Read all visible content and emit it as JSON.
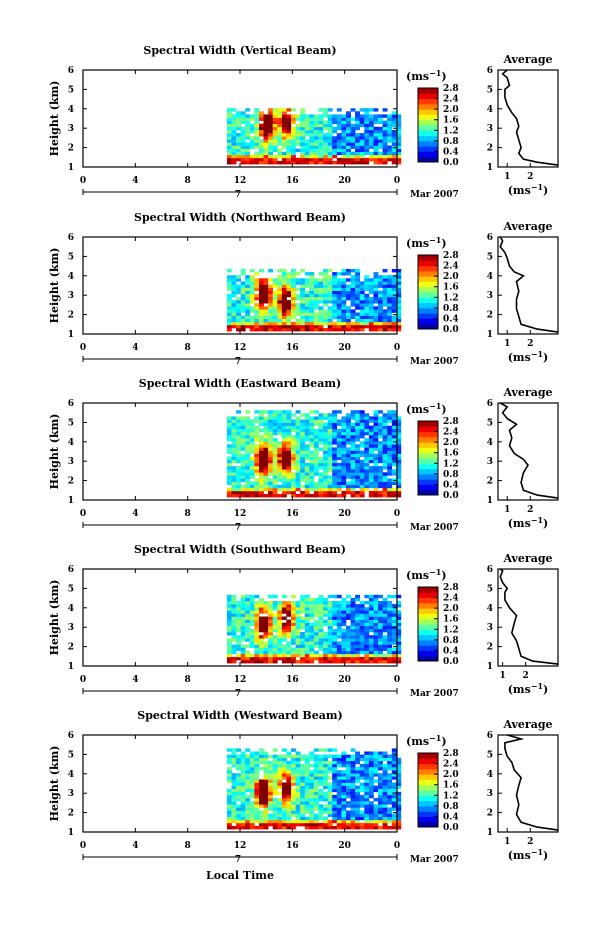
{
  "figure": {
    "xlabel": "Local Time",
    "colorbar_unit_base": "(ms",
    "colorbar_unit_exp": "−1",
    "colorbar_unit_close": ")",
    "date_day": "7",
    "date_suffix": "Mar 2007",
    "avg_title": "Average",
    "avg_unit_base": "(ms",
    "avg_unit_exp": "−1",
    "avg_unit_close": ")"
  },
  "chart_data": [
    {
      "type": "heatmap",
      "title": "Spectral Width (Vertical Beam)",
      "ylabel": "Height (km)",
      "xlim": [
        0,
        24
      ],
      "ylim": [
        1,
        6
      ],
      "xticks": [
        "0",
        "4",
        "8",
        "12",
        "16",
        "20",
        "0"
      ],
      "yticks": [
        "1",
        "2",
        "3",
        "4",
        "5",
        "6"
      ],
      "colorbar": {
        "ticks": [
          "0.0",
          "0.4",
          "0.8",
          "1.2",
          "1.6",
          "2.0",
          "2.4",
          "2.8"
        ],
        "range": [
          0,
          2.8
        ]
      },
      "data_start_hour": 11,
      "data_top_km": 4.0,
      "high_features": [
        {
          "x": 13.9,
          "y": 3.1,
          "amp": 2.8
        },
        {
          "x": 15.4,
          "y": 3.2,
          "amp": 2.1
        }
      ],
      "avg_profile": {
        "xticks": [
          "1",
          "2"
        ],
        "xlim": [
          0.6,
          3.2
        ],
        "ylim": [
          1,
          6
        ],
        "points": [
          [
            3.2,
            1.1
          ],
          [
            2.3,
            1.25
          ],
          [
            1.7,
            1.4
          ],
          [
            1.5,
            1.7
          ],
          [
            1.6,
            2.0
          ],
          [
            1.5,
            2.4
          ],
          [
            1.4,
            2.8
          ],
          [
            1.5,
            3.1
          ],
          [
            1.4,
            3.5
          ],
          [
            1.2,
            3.8
          ],
          [
            1.0,
            4.2
          ],
          [
            0.9,
            4.6
          ],
          [
            0.9,
            5.0
          ],
          [
            1.1,
            5.2
          ],
          [
            1.0,
            5.6
          ],
          [
            0.8,
            5.8
          ],
          [
            1.0,
            6.0
          ]
        ]
      }
    },
    {
      "type": "heatmap",
      "title": "Spectral Width (Northward Beam)",
      "ylabel": "Height (km)",
      "xlim": [
        0,
        24
      ],
      "ylim": [
        1,
        6
      ],
      "xticks": [
        "0",
        "4",
        "8",
        "12",
        "16",
        "20",
        "0"
      ],
      "yticks": [
        "1",
        "2",
        "3",
        "4",
        "5",
        "6"
      ],
      "colorbar": {
        "ticks": [
          "0.0",
          "0.4",
          "0.8",
          "1.2",
          "1.6",
          "2.0",
          "2.4",
          "2.8"
        ],
        "range": [
          0,
          2.8
        ]
      },
      "data_start_hour": 11,
      "data_top_km": 4.2,
      "high_features": [
        {
          "x": 13.6,
          "y": 3.0,
          "amp": 2.8
        },
        {
          "x": 15.3,
          "y": 2.6,
          "amp": 2.6
        }
      ],
      "avg_profile": {
        "xticks": [
          "1",
          "2"
        ],
        "xlim": [
          0.6,
          3.2
        ],
        "ylim": [
          1,
          6
        ],
        "points": [
          [
            3.2,
            1.1
          ],
          [
            2.3,
            1.25
          ],
          [
            1.6,
            1.5
          ],
          [
            1.5,
            1.9
          ],
          [
            1.4,
            2.3
          ],
          [
            1.4,
            2.8
          ],
          [
            1.5,
            3.2
          ],
          [
            1.4,
            3.7
          ],
          [
            1.7,
            4.0
          ],
          [
            1.3,
            4.2
          ],
          [
            1.1,
            4.5
          ],
          [
            1.0,
            4.9
          ],
          [
            0.9,
            5.2
          ],
          [
            0.7,
            5.5
          ],
          [
            0.8,
            5.8
          ],
          [
            0.7,
            6.0
          ]
        ]
      }
    },
    {
      "type": "heatmap",
      "title": "Spectral Width (Eastward Beam)",
      "ylabel": "Height (km)",
      "xlim": [
        0,
        24
      ],
      "ylim": [
        1,
        6
      ],
      "xticks": [
        "0",
        "4",
        "8",
        "12",
        "16",
        "20",
        "0"
      ],
      "yticks": [
        "1",
        "2",
        "3",
        "4",
        "5",
        "6"
      ],
      "colorbar": {
        "ticks": [
          "0.0",
          "0.4",
          "0.8",
          "1.2",
          "1.6",
          "2.0",
          "2.4",
          "2.8"
        ],
        "range": [
          0,
          2.8
        ]
      },
      "data_start_hour": 11,
      "data_top_km": 5.6,
      "high_features": [
        {
          "x": 13.6,
          "y": 3.0,
          "amp": 2.7
        },
        {
          "x": 15.3,
          "y": 3.1,
          "amp": 2.4
        }
      ],
      "avg_profile": {
        "xticks": [
          "1",
          "2"
        ],
        "xlim": [
          0.6,
          3.2
        ],
        "ylim": [
          1,
          6
        ],
        "points": [
          [
            3.2,
            1.1
          ],
          [
            2.3,
            1.25
          ],
          [
            1.7,
            1.5
          ],
          [
            1.6,
            1.9
          ],
          [
            1.7,
            2.4
          ],
          [
            1.9,
            2.8
          ],
          [
            1.7,
            3.1
          ],
          [
            1.3,
            3.4
          ],
          [
            1.1,
            3.8
          ],
          [
            1.2,
            4.2
          ],
          [
            1.1,
            4.6
          ],
          [
            1.4,
            4.9
          ],
          [
            1.0,
            5.2
          ],
          [
            0.8,
            5.5
          ],
          [
            1.0,
            5.8
          ],
          [
            0.7,
            6.0
          ]
        ]
      }
    },
    {
      "type": "heatmap",
      "title": "Spectral Width (Southward Beam)",
      "ylabel": "Height (km)",
      "xlim": [
        0,
        24
      ],
      "ylim": [
        1,
        6
      ],
      "xticks": [
        "0",
        "4",
        "8",
        "12",
        "16",
        "20",
        "0"
      ],
      "yticks": [
        "1",
        "2",
        "3",
        "4",
        "5",
        "6"
      ],
      "colorbar": {
        "ticks": [
          "0.0",
          "0.4",
          "0.8",
          "1.2",
          "1.6",
          "2.0",
          "2.4",
          "2.8"
        ],
        "range": [
          0,
          2.8
        ]
      },
      "data_start_hour": 11,
      "data_top_km": 4.6,
      "high_features": [
        {
          "x": 13.6,
          "y": 3.1,
          "amp": 2.8
        },
        {
          "x": 15.4,
          "y": 3.4,
          "amp": 2.3
        }
      ],
      "avg_profile": {
        "xticks": [
          "1",
          "2"
        ],
        "xlim": [
          0.8,
          3.4
        ],
        "ylim": [
          1,
          6
        ],
        "points": [
          [
            3.4,
            1.1
          ],
          [
            2.3,
            1.25
          ],
          [
            1.8,
            1.5
          ],
          [
            1.7,
            1.9
          ],
          [
            1.6,
            2.3
          ],
          [
            1.4,
            2.7
          ],
          [
            1.5,
            3.2
          ],
          [
            1.6,
            3.6
          ],
          [
            1.3,
            4.0
          ],
          [
            1.1,
            4.4
          ],
          [
            1.1,
            4.8
          ],
          [
            1.2,
            5.0
          ],
          [
            1.0,
            5.3
          ],
          [
            0.9,
            5.6
          ],
          [
            1.0,
            5.9
          ],
          [
            0.9,
            6.0
          ]
        ]
      }
    },
    {
      "type": "heatmap",
      "title": "Spectral Width (Westward Beam)",
      "ylabel": "Height (km)",
      "xlim": [
        0,
        24
      ],
      "ylim": [
        1,
        6
      ],
      "xticks": [
        "0",
        "4",
        "8",
        "12",
        "16",
        "20",
        "0"
      ],
      "yticks": [
        "1",
        "2",
        "3",
        "4",
        "5",
        "6"
      ],
      "colorbar": {
        "ticks": [
          "0.0",
          "0.4",
          "0.8",
          "1.2",
          "1.6",
          "2.0",
          "2.4",
          "2.8"
        ],
        "range": [
          0,
          2.8
        ]
      },
      "data_start_hour": 11,
      "data_top_km": 5.3,
      "high_features": [
        {
          "x": 13.6,
          "y": 3.0,
          "amp": 2.8
        },
        {
          "x": 15.4,
          "y": 3.2,
          "amp": 2.2
        }
      ],
      "avg_profile": {
        "xticks": [
          "1",
          "2"
        ],
        "xlim": [
          0.6,
          3.2
        ],
        "ylim": [
          1,
          6
        ],
        "points": [
          [
            3.2,
            1.1
          ],
          [
            2.3,
            1.25
          ],
          [
            1.6,
            1.5
          ],
          [
            1.4,
            1.9
          ],
          [
            1.5,
            2.4
          ],
          [
            1.4,
            2.9
          ],
          [
            1.5,
            3.4
          ],
          [
            1.6,
            3.8
          ],
          [
            1.3,
            4.2
          ],
          [
            1.2,
            4.6
          ],
          [
            1.0,
            4.9
          ],
          [
            0.9,
            5.3
          ],
          [
            0.9,
            5.6
          ],
          [
            1.6,
            5.8
          ],
          [
            1.0,
            6.0
          ]
        ]
      }
    }
  ]
}
